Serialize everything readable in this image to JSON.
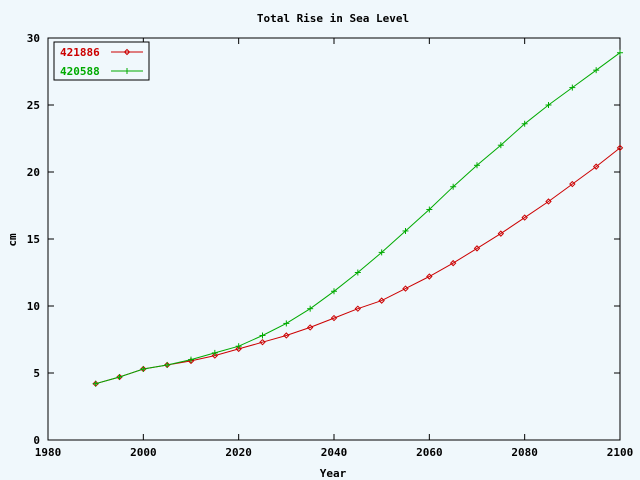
{
  "chart_data": {
    "type": "line",
    "title": "Total Rise in Sea Level",
    "xlabel": "Year",
    "ylabel": "cm",
    "xlim": [
      1980,
      2100
    ],
    "ylim": [
      0,
      30
    ],
    "xticks": [
      1980,
      2000,
      2020,
      2040,
      2060,
      2080,
      2100
    ],
    "yticks": [
      0,
      5,
      10,
      15,
      20,
      25,
      30
    ],
    "grid": false,
    "legend_position": "top-left",
    "x": [
      1990,
      1995,
      2000,
      2005,
      2010,
      2015,
      2020,
      2025,
      2030,
      2035,
      2040,
      2045,
      2050,
      2055,
      2060,
      2065,
      2070,
      2075,
      2080,
      2085,
      2090,
      2095,
      2100
    ],
    "series": [
      {
        "name": "421886",
        "color": "#cc0000",
        "marker": "diamond",
        "values": [
          4.2,
          4.7,
          5.3,
          5.6,
          5.9,
          6.3,
          6.8,
          7.3,
          7.8,
          8.4,
          9.1,
          9.8,
          10.4,
          11.3,
          12.2,
          13.2,
          14.3,
          15.4,
          16.6,
          17.8,
          19.1,
          20.4,
          21.8
        ]
      },
      {
        "name": "420588",
        "color": "#00aa00",
        "marker": "plus",
        "values": [
          4.2,
          4.7,
          5.3,
          5.6,
          6.0,
          6.5,
          7.0,
          7.8,
          8.7,
          9.8,
          11.1,
          12.5,
          14.0,
          15.6,
          17.2,
          18.9,
          20.5,
          22.0,
          23.6,
          25.0,
          26.3,
          27.6,
          28.9
        ]
      }
    ]
  }
}
